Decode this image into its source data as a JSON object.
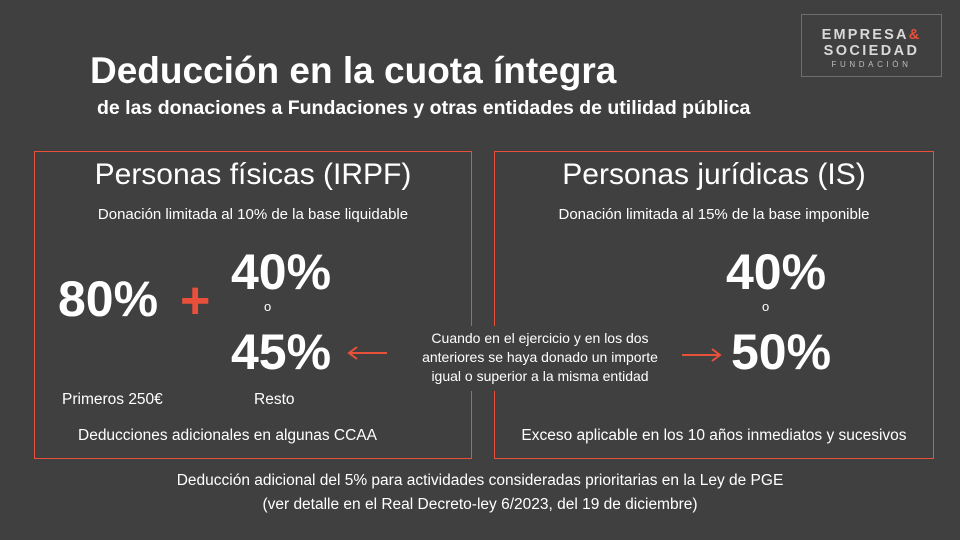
{
  "logo": {
    "line1": "EMPRESA",
    "amp": "&",
    "line2": "SOCIEDAD",
    "line3": "FUNDACIÓN"
  },
  "title": "Deducción en la cuota íntegra",
  "subtitle": "de las donaciones a Fundaciones y otras entidades de utilidad pública",
  "left": {
    "title": "Personas físicas (IRPF)",
    "limit": "Donación limitada al 10% de la base liquidable",
    "pct_first": "80%",
    "plus": "+",
    "pct_a": "40%",
    "or": "o",
    "pct_b": "45%",
    "label_first": "Primeros 250€",
    "label_rest": "Resto",
    "extra": "Deducciones adicionales en algunas CCAA"
  },
  "right": {
    "title": "Personas jurídicas (IS)",
    "limit": "Donación limitada al 15% de la base imponible",
    "pct_a": "40%",
    "or": "o",
    "pct_b": "50%",
    "extra": "Exceso aplicable en los 10 años inmediatos y sucesivos"
  },
  "note": {
    "line1": "Cuando en el ejercicio y en los dos",
    "line2": "anteriores se haya donado un importe",
    "line3": "igual o superior a la misma entidad"
  },
  "footer": {
    "line1": "Deducción adicional del 5% para actividades consideradas prioritarias en la Ley de PGE",
    "line2": "(ver detalle en el Real Decreto-ley 6/2023, del 19 de diciembre)"
  },
  "colors": {
    "accent": "#e8503a",
    "background": "#404040",
    "text": "#ffffff"
  }
}
